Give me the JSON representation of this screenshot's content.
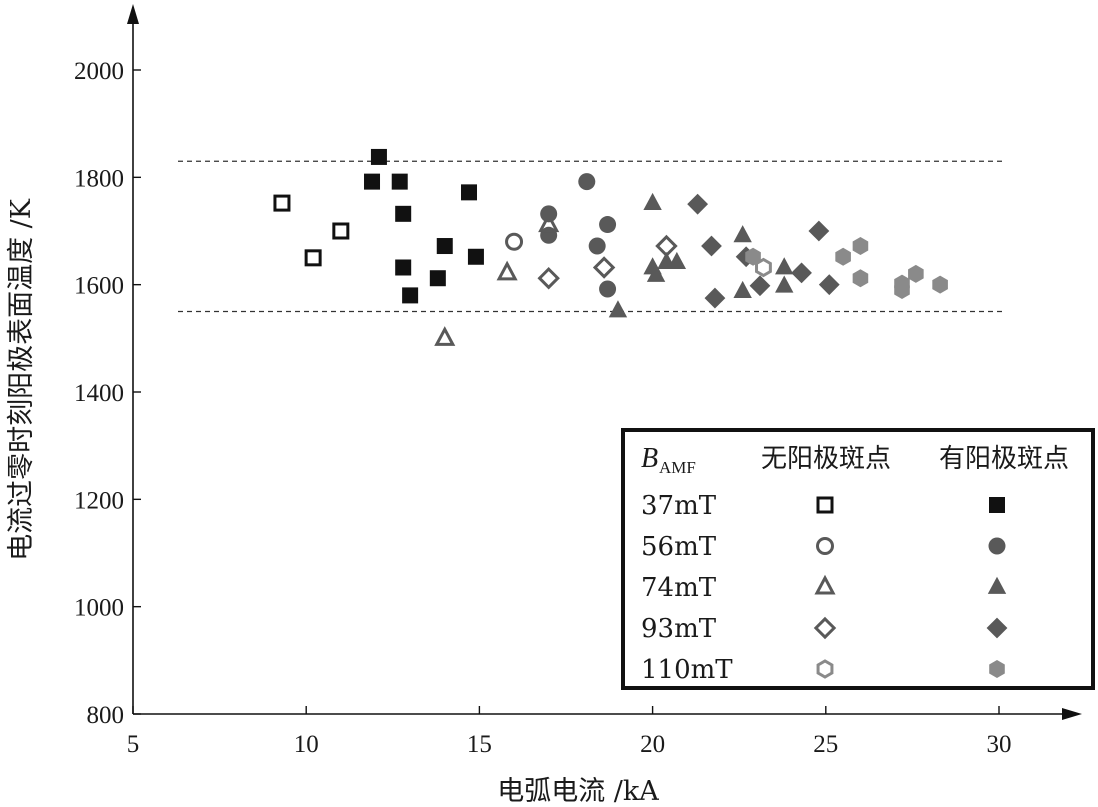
{
  "chart_data": {
    "type": "scatter",
    "xlabel": "电弧电流 /kA",
    "ylabel": "电流过零时刻阳极表面温度 /K",
    "xlim": [
      5,
      31
    ],
    "ylim": [
      800,
      2050
    ],
    "x_ticks": [
      5,
      10,
      15,
      20,
      25,
      30
    ],
    "y_ticks": [
      800,
      1000,
      1200,
      1400,
      1600,
      1800,
      2000
    ],
    "reference_lines": [
      1830,
      1550
    ],
    "legend": {
      "header_var": "B",
      "header_sub": "AMF",
      "col_without": "无阳极斑点",
      "col_with": "有阳极斑点",
      "placement": "bottom-right"
    },
    "series": [
      {
        "name": "37mT",
        "marker": "square",
        "color": "#111111",
        "without": [
          [
            9.3,
            1752
          ],
          [
            10.2,
            1650
          ],
          [
            11.0,
            1700
          ]
        ],
        "with": [
          [
            12.1,
            1838
          ],
          [
            11.9,
            1792
          ],
          [
            12.7,
            1792
          ],
          [
            12.8,
            1732
          ],
          [
            12.8,
            1632
          ],
          [
            13.0,
            1580
          ],
          [
            13.8,
            1612
          ],
          [
            14.0,
            1672
          ],
          [
            14.7,
            1772
          ],
          [
            14.9,
            1652
          ]
        ]
      },
      {
        "name": "56mT",
        "marker": "circle",
        "color": "#595959",
        "without": [
          [
            16.0,
            1680
          ]
        ],
        "with": [
          [
            17.0,
            1732
          ],
          [
            17.0,
            1692
          ],
          [
            18.1,
            1792
          ],
          [
            18.4,
            1672
          ],
          [
            18.7,
            1712
          ],
          [
            18.7,
            1592
          ]
        ]
      },
      {
        "name": "74mT",
        "marker": "triangle",
        "color": "#595959",
        "without": [
          [
            14.0,
            1500
          ],
          [
            15.8,
            1622
          ],
          [
            17.0,
            1712
          ]
        ],
        "with": [
          [
            19.0,
            1552
          ],
          [
            20.0,
            1752
          ],
          [
            20.0,
            1632
          ],
          [
            20.1,
            1618
          ],
          [
            20.4,
            1642
          ],
          [
            20.7,
            1642
          ],
          [
            22.6,
            1692
          ],
          [
            22.6,
            1588
          ],
          [
            23.8,
            1632
          ],
          [
            23.8,
            1598
          ]
        ]
      },
      {
        "name": "93mT",
        "marker": "diamond",
        "color": "#595959",
        "without": [
          [
            17.0,
            1612
          ],
          [
            18.6,
            1632
          ],
          [
            20.4,
            1672
          ]
        ],
        "with": [
          [
            21.3,
            1750
          ],
          [
            21.7,
            1672
          ],
          [
            21.8,
            1575
          ],
          [
            22.7,
            1652
          ],
          [
            23.1,
            1598
          ],
          [
            24.3,
            1622
          ],
          [
            24.8,
            1700
          ],
          [
            25.1,
            1600
          ]
        ]
      },
      {
        "name": "110mT",
        "marker": "hexagon",
        "color": "#8a8a8a",
        "without": [
          [
            23.2,
            1632
          ]
        ],
        "with": [
          [
            22.9,
            1652
          ],
          [
            25.5,
            1652
          ],
          [
            26.0,
            1672
          ],
          [
            26.0,
            1612
          ],
          [
            27.2,
            1602
          ],
          [
            27.2,
            1590
          ],
          [
            27.6,
            1620
          ],
          [
            28.3,
            1600
          ]
        ]
      }
    ]
  }
}
